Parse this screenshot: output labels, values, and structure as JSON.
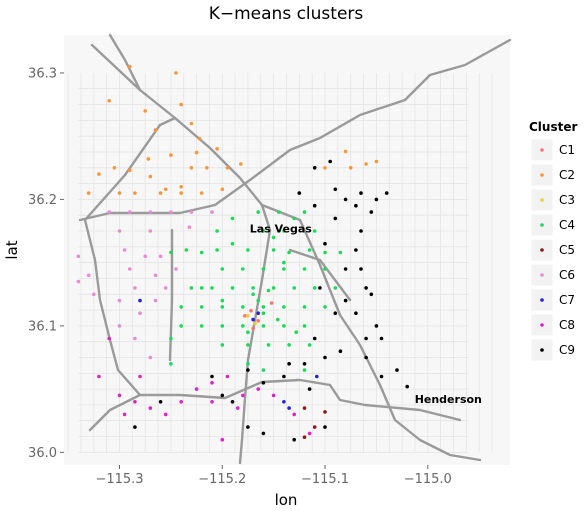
{
  "chart_data": {
    "type": "scatter",
    "title": "K−means clusters",
    "xlabel": "lon",
    "ylabel": "lat",
    "xlim": [
      -115.354,
      -114.92
    ],
    "ylim": [
      35.99,
      36.33
    ],
    "x_ticks": [
      -115.3,
      -115.2,
      -115.1,
      -115.0
    ],
    "x_tick_labels": [
      "−115.3",
      "−115.2",
      "−115.1",
      "−115.0"
    ],
    "y_ticks": [
      36.0,
      36.1,
      36.2,
      36.3
    ],
    "y_tick_labels": [
      "36.0",
      "36.1",
      "36.2",
      "36.3"
    ],
    "grid": false,
    "background": "street-map",
    "legend": {
      "title": "Cluster",
      "position": "right"
    },
    "annotations": [
      {
        "text": "Las Vegas",
        "x": -115.143,
        "y": 36.174
      },
      {
        "text": "Henderson",
        "x": -114.98,
        "y": 36.039
      }
    ],
    "series": [
      {
        "name": "C1",
        "color": "#F8766D",
        "points": [
          [
            -115.178,
            36.108
          ],
          [
            -115.172,
            36.112
          ],
          [
            -115.165,
            36.104
          ],
          [
            -115.152,
            36.118
          ],
          [
            -115.17,
            36.098
          ]
        ]
      },
      {
        "name": "C2",
        "color": "#F8973A",
        "points": [
          [
            -115.29,
            36.305
          ],
          [
            -115.245,
            36.3
          ],
          [
            -115.31,
            36.278
          ],
          [
            -115.275,
            36.27
          ],
          [
            -115.24,
            36.275
          ],
          [
            -115.23,
            36.26
          ],
          [
            -115.222,
            36.248
          ],
          [
            -115.205,
            36.24
          ],
          [
            -115.25,
            36.235
          ],
          [
            -115.23,
            36.225
          ],
          [
            -115.215,
            36.225
          ],
          [
            -115.195,
            36.225
          ],
          [
            -115.182,
            36.228
          ],
          [
            -115.27,
            36.218
          ],
          [
            -115.255,
            36.208
          ],
          [
            -115.24,
            36.21
          ],
          [
            -115.32,
            36.22
          ],
          [
            -115.305,
            36.225
          ],
          [
            -115.29,
            36.223
          ],
          [
            -115.285,
            36.205
          ],
          [
            -115.33,
            36.205
          ],
          [
            -115.3,
            36.205
          ],
          [
            -115.26,
            36.205
          ],
          [
            -115.24,
            36.205
          ],
          [
            -115.22,
            36.205
          ],
          [
            -115.2,
            36.208
          ],
          [
            -115.1,
            36.225
          ],
          [
            -115.08,
            36.238
          ],
          [
            -115.075,
            36.225
          ],
          [
            -115.06,
            36.228
          ],
          [
            -115.05,
            36.23
          ],
          [
            -115.225,
            36.237
          ],
          [
            -115.272,
            36.232
          ],
          [
            -115.265,
            36.255
          ]
        ]
      },
      {
        "name": "C3",
        "color": "#E7D233",
        "points": [
          [
            -115.175,
            36.108
          ],
          [
            -115.168,
            36.102
          ]
        ]
      },
      {
        "name": "C4",
        "color": "#1ADA59",
        "points": [
          [
            -115.13,
            36.185
          ],
          [
            -115.145,
            36.19
          ],
          [
            -115.12,
            36.19
          ],
          [
            -115.11,
            36.175
          ],
          [
            -115.16,
            36.175
          ],
          [
            -115.175,
            36.16
          ],
          [
            -115.19,
            36.165
          ],
          [
            -115.205,
            36.16
          ],
          [
            -115.22,
            36.158
          ],
          [
            -115.235,
            36.16
          ],
          [
            -115.25,
            36.158
          ],
          [
            -115.15,
            36.16
          ],
          [
            -115.135,
            36.158
          ],
          [
            -115.115,
            36.16
          ],
          [
            -115.1,
            36.158
          ],
          [
            -115.085,
            36.158
          ],
          [
            -115.2,
            36.145
          ],
          [
            -115.18,
            36.145
          ],
          [
            -115.16,
            36.145
          ],
          [
            -115.14,
            36.145
          ],
          [
            -115.12,
            36.145
          ],
          [
            -115.1,
            36.145
          ],
          [
            -115.23,
            36.13
          ],
          [
            -115.21,
            36.13
          ],
          [
            -115.19,
            36.13
          ],
          [
            -115.17,
            36.13
          ],
          [
            -115.15,
            36.13
          ],
          [
            -115.13,
            36.13
          ],
          [
            -115.11,
            36.13
          ],
          [
            -115.09,
            36.13
          ],
          [
            -115.24,
            36.115
          ],
          [
            -115.22,
            36.115
          ],
          [
            -115.2,
            36.115
          ],
          [
            -115.18,
            36.115
          ],
          [
            -115.16,
            36.115
          ],
          [
            -115.14,
            36.115
          ],
          [
            -115.12,
            36.115
          ],
          [
            -115.1,
            36.115
          ],
          [
            -115.22,
            36.1
          ],
          [
            -115.2,
            36.1
          ],
          [
            -115.18,
            36.1
          ],
          [
            -115.16,
            36.1
          ],
          [
            -115.14,
            36.1
          ],
          [
            -115.12,
            36.1
          ],
          [
            -115.2,
            36.085
          ],
          [
            -115.175,
            36.085
          ],
          [
            -115.155,
            36.085
          ],
          [
            -115.135,
            36.085
          ],
          [
            -115.115,
            36.085
          ],
          [
            -115.25,
            36.09
          ],
          [
            -115.25,
            36.07
          ],
          [
            -115.175,
            36.07
          ],
          [
            -115.16,
            36.065
          ],
          [
            -115.135,
            36.07
          ],
          [
            -115.12,
            36.065
          ],
          [
            -115.22,
            36.13
          ],
          [
            -115.165,
            36.12
          ],
          [
            -115.16,
            36.11
          ],
          [
            -115.17,
            36.125
          ],
          [
            -115.155,
            36.128
          ],
          [
            -115.14,
            36.15
          ],
          [
            -115.146,
            36.105
          ],
          [
            -115.128,
            36.095
          ],
          [
            -115.175,
            36.095
          ],
          [
            -115.24,
            36.1
          ],
          [
            -115.205,
            36.175
          ],
          [
            -115.14,
            36.175
          ],
          [
            -115.2,
            36.12
          ],
          [
            -115.15,
            36.17
          ],
          [
            -115.19,
            36.185
          ],
          [
            -115.165,
            36.19
          ]
        ]
      },
      {
        "name": "C5",
        "color": "#8B1A1A",
        "points": [
          [
            -115.12,
            36.035
          ],
          [
            -115.12,
            36.012
          ],
          [
            -115.1,
            36.032
          ],
          [
            -115.11,
            36.02
          ]
        ]
      },
      {
        "name": "C6",
        "color": "#E88AD8",
        "points": [
          [
            -115.34,
            36.155
          ],
          [
            -115.33,
            36.14
          ],
          [
            -115.325,
            36.125
          ],
          [
            -115.34,
            36.135
          ],
          [
            -115.3,
            36.175
          ],
          [
            -115.295,
            36.16
          ],
          [
            -115.29,
            36.145
          ],
          [
            -115.285,
            36.13
          ],
          [
            -115.275,
            36.155
          ],
          [
            -115.265,
            36.14
          ],
          [
            -115.26,
            36.155
          ],
          [
            -115.255,
            36.13
          ],
          [
            -115.245,
            36.145
          ],
          [
            -115.31,
            36.19
          ],
          [
            -115.29,
            36.19
          ],
          [
            -115.27,
            36.19
          ],
          [
            -115.25,
            36.19
          ],
          [
            -115.23,
            36.19
          ],
          [
            -115.21,
            36.19
          ],
          [
            -115.3,
            36.12
          ],
          [
            -115.28,
            36.11
          ],
          [
            -115.265,
            36.12
          ],
          [
            -115.285,
            36.09
          ],
          [
            -115.27,
            36.075
          ],
          [
            -115.3,
            36.1
          ],
          [
            -115.27,
            36.175
          ],
          [
            -115.232,
            36.178
          ]
        ]
      },
      {
        "name": "C7",
        "color": "#2222DD",
        "points": [
          [
            -115.17,
            36.105
          ],
          [
            -115.165,
            36.11
          ],
          [
            -115.14,
            36.04
          ],
          [
            -115.135,
            36.035
          ],
          [
            -115.28,
            36.12
          ],
          [
            -115.108,
            36.06
          ]
        ]
      },
      {
        "name": "C8",
        "color": "#E020C8",
        "points": [
          [
            -115.3,
            36.045
          ],
          [
            -115.285,
            36.04
          ],
          [
            -115.27,
            36.035
          ],
          [
            -115.255,
            36.03
          ],
          [
            -115.24,
            36.04
          ],
          [
            -115.225,
            36.05
          ],
          [
            -115.21,
            36.055
          ],
          [
            -115.195,
            36.06
          ],
          [
            -115.2,
            36.01
          ],
          [
            -115.18,
            36.045
          ],
          [
            -115.165,
            36.05
          ],
          [
            -115.15,
            36.045
          ],
          [
            -115.13,
            36.03
          ],
          [
            -115.115,
            36.015
          ],
          [
            -115.28,
            36.06
          ],
          [
            -115.295,
            36.03
          ],
          [
            -115.21,
            36.04
          ],
          [
            -115.185,
            36.035
          ],
          [
            -115.31,
            36.09
          ],
          [
            -115.32,
            36.06
          ]
        ]
      },
      {
        "name": "C9",
        "color": "#000000",
        "points": [
          [
            -115.11,
            36.225
          ],
          [
            -115.095,
            36.23
          ],
          [
            -115.09,
            36.208
          ],
          [
            -115.08,
            36.2
          ],
          [
            -115.065,
            36.205
          ],
          [
            -115.055,
            36.19
          ],
          [
            -115.05,
            36.2
          ],
          [
            -115.04,
            36.205
          ],
          [
            -115.065,
            36.175
          ],
          [
            -115.07,
            36.16
          ],
          [
            -115.065,
            36.145
          ],
          [
            -115.06,
            36.13
          ],
          [
            -115.08,
            36.12
          ],
          [
            -115.09,
            36.11
          ],
          [
            -115.07,
            36.11
          ],
          [
            -115.05,
            36.1
          ],
          [
            -115.06,
            36.09
          ],
          [
            -115.09,
            36.185
          ],
          [
            -115.11,
            36.195
          ],
          [
            -115.125,
            36.205
          ],
          [
            -115.1,
            36.165
          ],
          [
            -115.08,
            36.145
          ],
          [
            -115.105,
            36.13
          ],
          [
            -115.11,
            36.09
          ],
          [
            -115.12,
            36.07
          ],
          [
            -115.1,
            36.075
          ],
          [
            -115.085,
            36.08
          ],
          [
            -115.06,
            36.075
          ],
          [
            -115.045,
            36.09
          ],
          [
            -115.03,
            36.065
          ],
          [
            -115.02,
            36.052
          ],
          [
            -115.115,
            36.05
          ],
          [
            -115.14,
            36.06
          ],
          [
            -115.16,
            36.055
          ],
          [
            -115.175,
            36.065
          ],
          [
            -115.19,
            36.04
          ],
          [
            -115.2,
            36.045
          ],
          [
            -115.175,
            36.02
          ],
          [
            -115.16,
            36.015
          ],
          [
            -115.13,
            36.01
          ],
          [
            -115.1,
            36.02
          ],
          [
            -115.135,
            36.07
          ],
          [
            -115.045,
            36.06
          ],
          [
            -115.055,
            36.125
          ],
          [
            -115.07,
            36.195
          ],
          [
            -115.21,
            36.06
          ],
          [
            -115.26,
            36.04
          ],
          [
            -115.285,
            36.02
          ]
        ]
      }
    ]
  }
}
